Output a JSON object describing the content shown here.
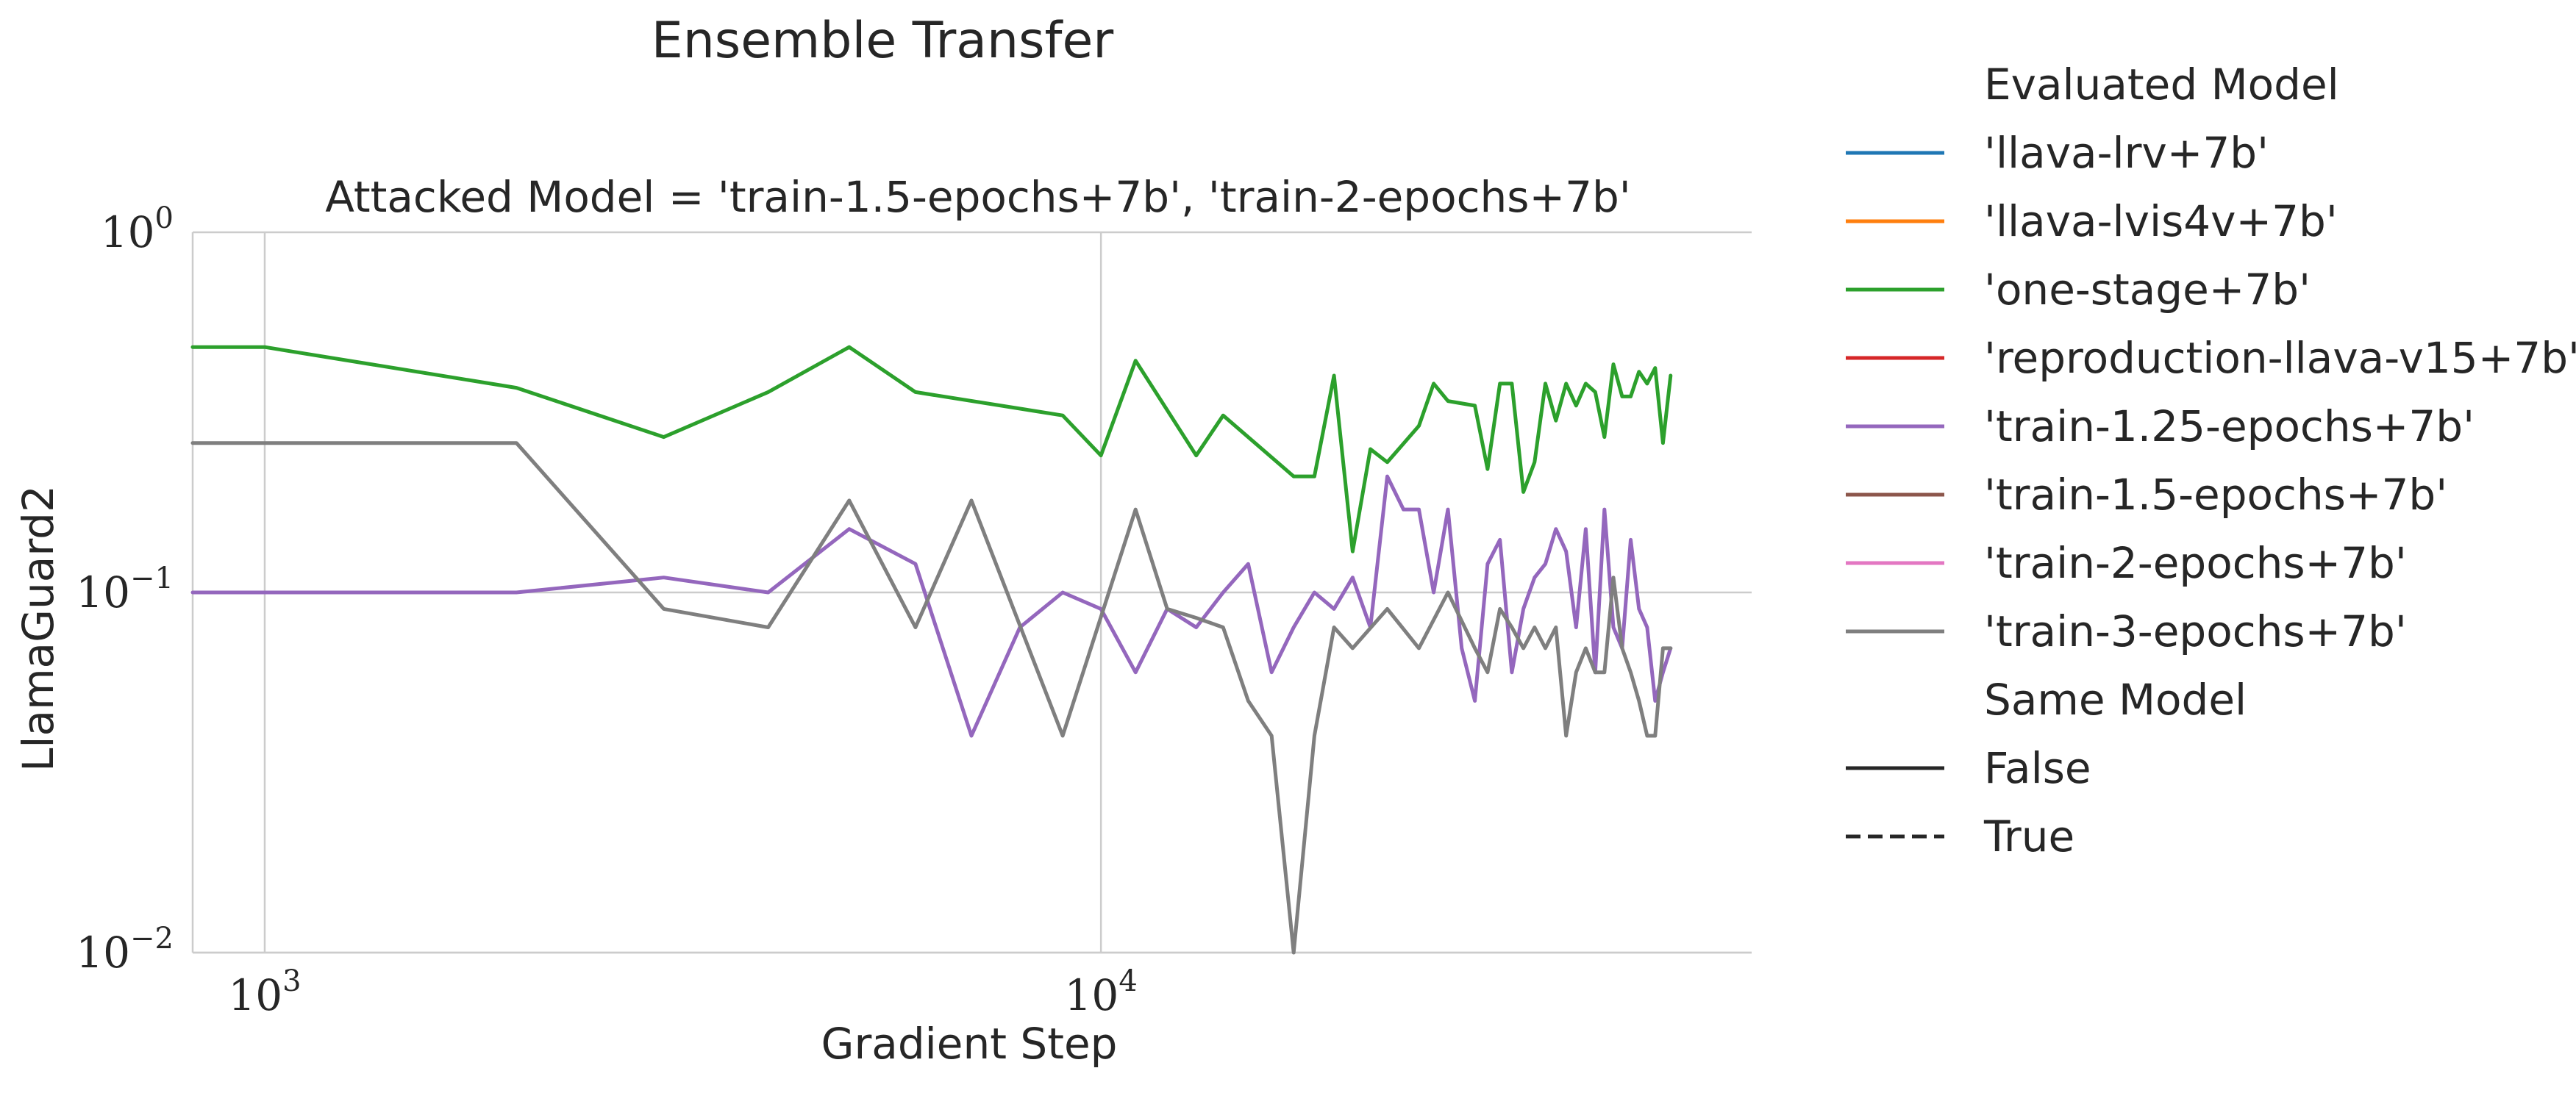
{
  "chart_data": {
    "type": "line",
    "figure_title": "Ensemble Transfer",
    "panel_title": "Attacked Model = 'train-1.5-epochs+7b', 'train-2-epochs+7b'",
    "xlabel": "Gradient Step",
    "ylabel": "LlamaGuard2",
    "xscale": "log",
    "yscale": "log",
    "xlim": [
      820,
      60000
    ],
    "ylim": [
      0.01,
      1.0
    ],
    "grid": true,
    "x_ticks": [
      {
        "value": 1000,
        "base": "10",
        "exp": "3"
      },
      {
        "value": 10000,
        "base": "10",
        "exp": "4"
      }
    ],
    "y_ticks": [
      {
        "value": 0.01,
        "base": "10",
        "exp": "−2"
      },
      {
        "value": 0.1,
        "base": "10",
        "exp": "−1"
      },
      {
        "value": 1.0,
        "base": "10",
        "exp": "0"
      }
    ],
    "legend": {
      "placement": "outside-right",
      "hue_title": "Evaluated Model",
      "hue_entries": [
        {
          "name": "'llava-lrv+7b'",
          "color": "#1f77b4"
        },
        {
          "name": "'llava-lvis4v+7b'",
          "color": "#ff7f0e"
        },
        {
          "name": "'one-stage+7b'",
          "color": "#2ca02c"
        },
        {
          "name": "'reproduction-llava-v15+7b'",
          "color": "#d62728"
        },
        {
          "name": "'train-1.25-epochs+7b'",
          "color": "#9467bd"
        },
        {
          "name": "'train-1.5-epochs+7b'",
          "color": "#8c564b"
        },
        {
          "name": "'train-2-epochs+7b'",
          "color": "#e377c2"
        },
        {
          "name": "'train-3-epochs+7b'",
          "color": "#7f7f7f"
        }
      ],
      "style_title": "Same Model",
      "style_entries": [
        {
          "name": "False",
          "dash": "solid"
        },
        {
          "name": "True",
          "dash": "dashed"
        }
      ]
    },
    "series": [
      {
        "name": "'one-stage+7b'",
        "color": "#2ca02c",
        "x": [
          820,
          1000,
          2000,
          3000,
          4000,
          5000,
          6000,
          9000,
          10000,
          11000,
          13000,
          14000,
          17000,
          18000,
          19000,
          20000,
          21000,
          22000,
          24000,
          25000,
          26000,
          28000,
          29000,
          30000,
          31000,
          32000,
          33000,
          34000,
          35000,
          36000,
          37000,
          38000,
          39000,
          40000,
          41000,
          42000,
          43000,
          44000,
          45000,
          46000,
          47000,
          48000
        ],
        "y": [
          0.48,
          0.48,
          0.37,
          0.27,
          0.36,
          0.48,
          0.36,
          0.31,
          0.24,
          0.44,
          0.24,
          0.31,
          0.21,
          0.21,
          0.4,
          0.13,
          0.25,
          0.23,
          0.29,
          0.38,
          0.34,
          0.33,
          0.22,
          0.38,
          0.38,
          0.19,
          0.23,
          0.38,
          0.3,
          0.38,
          0.33,
          0.38,
          0.36,
          0.27,
          0.43,
          0.35,
          0.35,
          0.41,
          0.38,
          0.42,
          0.26,
          0.4
        ]
      },
      {
        "name": "'train-1.25-epochs+7b'",
        "color": "#9467bd",
        "x": [
          820,
          1000,
          2000,
          3000,
          4000,
          5000,
          6000,
          7000,
          8000,
          9000,
          10000,
          11000,
          12000,
          13000,
          14000,
          15000,
          16000,
          17000,
          18000,
          19000,
          20000,
          21000,
          22000,
          23000,
          24000,
          25000,
          26000,
          27000,
          28000,
          29000,
          30000,
          31000,
          32000,
          33000,
          34000,
          35000,
          36000,
          37000,
          38000,
          39000,
          40000,
          41000,
          42000,
          43000,
          44000,
          45000,
          46000,
          47000,
          48000
        ],
        "y": [
          0.1,
          0.1,
          0.1,
          0.11,
          0.1,
          0.15,
          0.12,
          0.04,
          0.08,
          0.1,
          0.09,
          0.06,
          0.09,
          0.08,
          0.1,
          0.12,
          0.06,
          0.08,
          0.1,
          0.09,
          0.11,
          0.08,
          0.21,
          0.17,
          0.17,
          0.1,
          0.17,
          0.07,
          0.05,
          0.12,
          0.14,
          0.06,
          0.09,
          0.11,
          0.12,
          0.15,
          0.13,
          0.08,
          0.15,
          0.06,
          0.17,
          0.08,
          0.07,
          0.14,
          0.09,
          0.08,
          0.05,
          0.06,
          0.07
        ]
      },
      {
        "name": "'train-3-epochs+7b'",
        "color": "#7f7f7f",
        "x": [
          820,
          1000,
          2000,
          3000,
          4000,
          5000,
          6000,
          7000,
          9000,
          11000,
          12000,
          13000,
          14000,
          15000,
          16000,
          17000,
          18000,
          19000,
          20000,
          22000,
          24000,
          26000,
          28000,
          29000,
          30000,
          31000,
          32000,
          33000,
          34000,
          35000,
          36000,
          37000,
          38000,
          39000,
          40000,
          41000,
          42000,
          43000,
          44000,
          45000,
          46000,
          47000,
          48000
        ],
        "y": [
          0.26,
          0.26,
          0.26,
          0.09,
          0.08,
          0.18,
          0.08,
          0.18,
          0.04,
          0.17,
          0.09,
          0.085,
          0.08,
          0.05,
          0.04,
          0.01,
          0.04,
          0.08,
          0.07,
          0.09,
          0.07,
          0.1,
          0.07,
          0.06,
          0.09,
          0.08,
          0.07,
          0.08,
          0.07,
          0.08,
          0.04,
          0.06,
          0.07,
          0.06,
          0.06,
          0.11,
          0.07,
          0.06,
          0.05,
          0.04,
          0.04,
          0.07,
          0.07
        ]
      }
    ]
  }
}
